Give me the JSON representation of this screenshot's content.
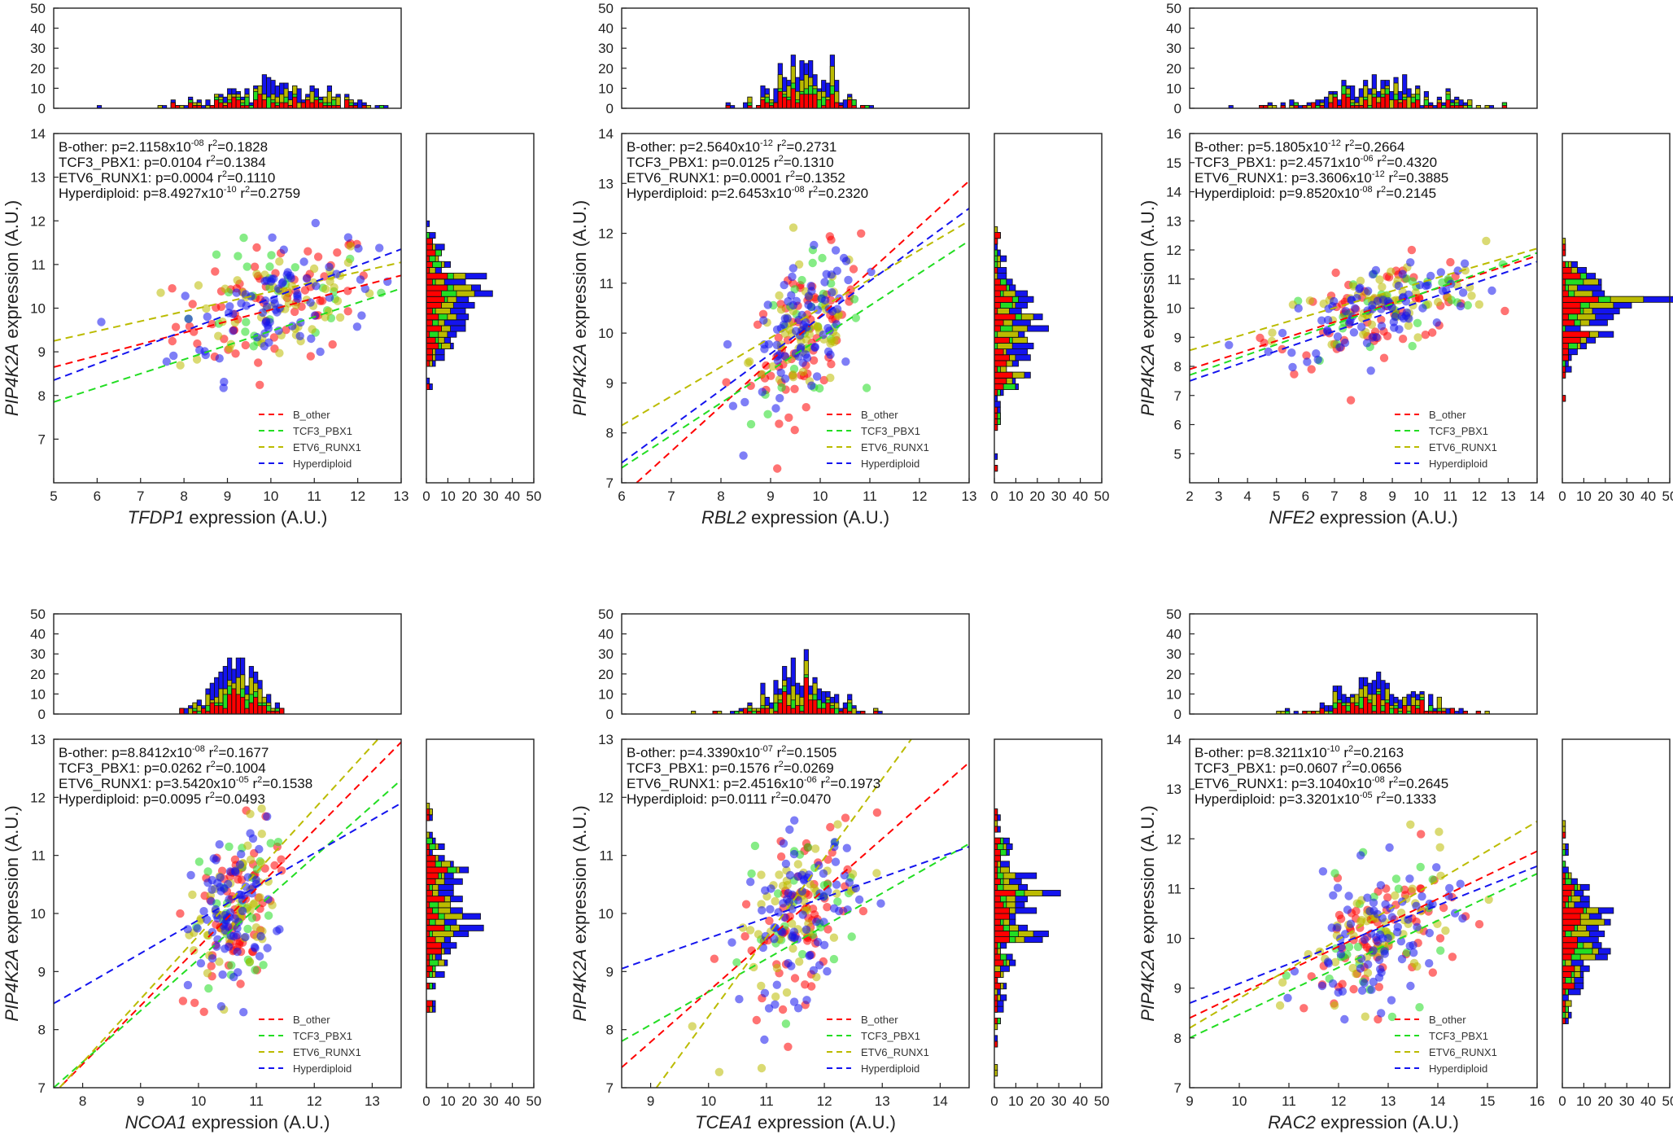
{
  "colors": {
    "B_other": "#ff0000",
    "TCF3_PBX1": "#22dd22",
    "ETV6_RUNX1": "#bbbb00",
    "Hyperdiploid": "#1414ee"
  },
  "legend": [
    "B_other",
    "TCF3_PBX1",
    "ETV6_RUNX1",
    "Hyperdiploid"
  ],
  "y_label_gene": "PIP4K2A",
  "axis_suffix": "expression (A.U.)",
  "hist_ticks": [
    0,
    10,
    20,
    30,
    40,
    50
  ],
  "chart_data": [
    {
      "type": "scatter",
      "x_gene": "TFDP1",
      "xlim": [
        5,
        13
      ],
      "ylim": [
        6,
        14
      ],
      "xticks": [
        5,
        6,
        7,
        8,
        9,
        10,
        11,
        12,
        13
      ],
      "yticks": [
        7,
        8,
        9,
        10,
        11,
        12,
        13,
        14
      ],
      "x_center": 10.1,
      "x_sd": 1.15,
      "y_center": 10.1,
      "y_sd": 0.85,
      "stats": [
        {
          "label": "B-other:",
          "p": "p=2.1158x10",
          "exp": "-08",
          "r2": "=0.1828"
        },
        {
          "label": "TCF3_PBX1:",
          "p": "p=0.0104",
          "exp": "",
          "r2": "=0.1384"
        },
        {
          "label": "ETV6_RUNX1:",
          "p": "p=0.0004",
          "exp": "",
          "r2": "=0.1110"
        },
        {
          "label": "Hyperdiploid:",
          "p": "p=8.4927x10",
          "exp": "-10",
          "r2": "=0.2759"
        }
      ],
      "fits": [
        {
          "group": "B_other",
          "x": [
            5,
            13
          ],
          "y": [
            8.65,
            10.75
          ]
        },
        {
          "group": "TCF3_PBX1",
          "x": [
            5,
            13
          ],
          "y": [
            7.85,
            10.45
          ]
        },
        {
          "group": "ETV6_RUNX1",
          "x": [
            5,
            13
          ],
          "y": [
            9.25,
            11.05
          ]
        },
        {
          "group": "Hyperdiploid",
          "x": [
            5,
            13
          ],
          "y": [
            8.35,
            11.35
          ]
        }
      ]
    },
    {
      "type": "scatter",
      "x_gene": "RBL2",
      "xlim": [
        6,
        13
      ],
      "ylim": [
        7,
        14
      ],
      "xticks": [
        6,
        7,
        8,
        9,
        10,
        11,
        12,
        13
      ],
      "yticks": [
        7,
        8,
        9,
        10,
        11,
        12,
        13,
        14
      ],
      "x_center": 9.7,
      "x_sd": 0.55,
      "y_center": 10.0,
      "y_sd": 0.85,
      "stats": [
        {
          "label": "B-other:",
          "p": "p=2.5640x10",
          "exp": "-12",
          "r2": "=0.2731"
        },
        {
          "label": "TCF3_PBX1:",
          "p": "p=0.0125",
          "exp": "",
          "r2": "=0.1310"
        },
        {
          "label": "ETV6_RUNX1:",
          "p": "p=0.0001",
          "exp": "",
          "r2": "=0.1352"
        },
        {
          "label": "Hyperdiploid:",
          "p": "p=2.6453x10",
          "exp": "-08",
          "r2": "=0.2320"
        }
      ],
      "fits": [
        {
          "group": "B_other",
          "x": [
            6.3,
            13
          ],
          "y": [
            7.0,
            13.05
          ]
        },
        {
          "group": "TCF3_PBX1",
          "x": [
            6,
            13
          ],
          "y": [
            7.3,
            11.85
          ]
        },
        {
          "group": "ETV6_RUNX1",
          "x": [
            6,
            13
          ],
          "y": [
            8.15,
            12.25
          ]
        },
        {
          "group": "Hyperdiploid",
          "x": [
            6,
            13
          ],
          "y": [
            7.4,
            12.5
          ]
        }
      ]
    },
    {
      "type": "scatter",
      "x_gene": "NFE2",
      "xlim": [
        2,
        14
      ],
      "ylim": [
        4,
        16
      ],
      "xticks": [
        2,
        3,
        4,
        5,
        6,
        7,
        8,
        9,
        10,
        11,
        12,
        13,
        14
      ],
      "yticks": [
        5,
        6,
        7,
        8,
        9,
        10,
        11,
        12,
        13,
        14,
        15,
        16
      ],
      "x_center": 8.6,
      "x_sd": 1.8,
      "y_center": 10.0,
      "y_sd": 0.9,
      "stats": [
        {
          "label": "B-other:",
          "p": "p=5.1805x10",
          "exp": "-12",
          "r2": "=0.2664"
        },
        {
          "label": "TCF3_PBX1:",
          "p": "p=2.4571x10",
          "exp": "-06",
          "r2": "=0.4320"
        },
        {
          "label": "ETV6_RUNX1:",
          "p": "p=3.3606x10",
          "exp": "-12",
          "r2": "=0.3885"
        },
        {
          "label": "Hyperdiploid:",
          "p": "p=9.8520x10",
          "exp": "-08",
          "r2": "=0.2145"
        }
      ],
      "fits": [
        {
          "group": "B_other",
          "x": [
            2,
            14
          ],
          "y": [
            7.9,
            11.8
          ]
        },
        {
          "group": "TCF3_PBX1",
          "x": [
            2,
            14
          ],
          "y": [
            7.7,
            11.9
          ]
        },
        {
          "group": "ETV6_RUNX1",
          "x": [
            2,
            14
          ],
          "y": [
            8.55,
            12.05
          ]
        },
        {
          "group": "Hyperdiploid",
          "x": [
            2,
            14
          ],
          "y": [
            7.5,
            11.6
          ]
        }
      ]
    },
    {
      "type": "scatter",
      "x_gene": "NCOA1",
      "xlim": [
        7.5,
        13.5
      ],
      "ylim": [
        7,
        13
      ],
      "xticks": [
        8,
        9,
        10,
        11,
        12,
        13
      ],
      "yticks": [
        7,
        8,
        9,
        10,
        11,
        12,
        13
      ],
      "x_center": 10.6,
      "x_sd": 0.35,
      "y_center": 10.0,
      "y_sd": 0.85,
      "stats": [
        {
          "label": "B-other:",
          "p": "p=8.8412x10",
          "exp": "-08",
          "r2": "=0.1677"
        },
        {
          "label": "TCF3_PBX1:",
          "p": "p=0.0262",
          "exp": "",
          "r2": "=0.1004"
        },
        {
          "label": "ETV6_RUNX1:",
          "p": "p=3.5420x10",
          "exp": "-05",
          "r2": "=0.1538"
        },
        {
          "label": "Hyperdiploid:",
          "p": "p=0.0095",
          "exp": "",
          "r2": "=0.0493"
        }
      ],
      "fits": [
        {
          "group": "B_other",
          "x": [
            7.5,
            13.5
          ],
          "y": [
            6.9,
            12.95
          ]
        },
        {
          "group": "TCF3_PBX1",
          "x": [
            7.5,
            13.5
          ],
          "y": [
            7.0,
            12.3
          ]
        },
        {
          "group": "ETV6_RUNX1",
          "x": [
            7.6,
            13.1
          ],
          "y": [
            7.0,
            13.0
          ]
        },
        {
          "group": "Hyperdiploid",
          "x": [
            7.5,
            13.5
          ],
          "y": [
            8.45,
            11.9
          ]
        }
      ]
    },
    {
      "type": "scatter",
      "x_gene": "TCEA1",
      "xlim": [
        8.5,
        14.5
      ],
      "ylim": [
        7,
        13
      ],
      "xticks": [
        9,
        10,
        11,
        12,
        13,
        14
      ],
      "yticks": [
        7,
        8,
        9,
        10,
        11,
        12,
        13
      ],
      "x_center": 11.6,
      "x_sd": 0.5,
      "y_center": 10.0,
      "y_sd": 0.85,
      "stats": [
        {
          "label": "B-other:",
          "p": "p=4.3390x10",
          "exp": "-07",
          "r2": "=0.1505"
        },
        {
          "label": "TCF3_PBX1:",
          "p": "p=0.1576",
          "exp": "",
          "r2": "=0.0269"
        },
        {
          "label": "ETV6_RUNX1:",
          "p": "p=2.4516x10",
          "exp": "-06",
          "r2": "=0.1973"
        },
        {
          "label": "Hyperdiploid:",
          "p": "p=0.0111",
          "exp": "",
          "r2": "=0.0470"
        }
      ],
      "fits": [
        {
          "group": "B_other",
          "x": [
            8.5,
            14.5
          ],
          "y": [
            7.35,
            12.6
          ]
        },
        {
          "group": "TCF3_PBX1",
          "x": [
            8.5,
            14.5
          ],
          "y": [
            7.8,
            11.2
          ]
        },
        {
          "group": "ETV6_RUNX1",
          "x": [
            9.1,
            13.5
          ],
          "y": [
            7.0,
            13.0
          ]
        },
        {
          "group": "Hyperdiploid",
          "x": [
            8.5,
            14.5
          ],
          "y": [
            9.05,
            11.15
          ]
        }
      ]
    },
    {
      "type": "scatter",
      "x_gene": "RAC2",
      "xlim": [
        9,
        16
      ],
      "ylim": [
        7,
        14
      ],
      "xticks": [
        9,
        10,
        11,
        12,
        13,
        14,
        15,
        16
      ],
      "yticks": [
        7,
        8,
        9,
        10,
        11,
        12,
        13,
        14
      ],
      "x_center": 12.8,
      "x_sd": 0.75,
      "y_center": 10.0,
      "y_sd": 0.85,
      "stats": [
        {
          "label": "B-other:",
          "p": "p=8.3211x10",
          "exp": "-10",
          "r2": "=0.2163"
        },
        {
          "label": "TCF3_PBX1:",
          "p": "p=0.0607",
          "exp": "",
          "r2": "=0.0656"
        },
        {
          "label": "ETV6_RUNX1:",
          "p": "p=3.1040x10",
          "exp": "-08",
          "r2": "=0.2645"
        },
        {
          "label": "Hyperdiploid:",
          "p": "p=3.3201x10",
          "exp": "-05",
          "r2": "=0.1333"
        }
      ],
      "fits": [
        {
          "group": "B_other",
          "x": [
            9,
            16
          ],
          "y": [
            8.4,
            11.75
          ]
        },
        {
          "group": "TCF3_PBX1",
          "x": [
            9,
            16
          ],
          "y": [
            8.0,
            11.3
          ]
        },
        {
          "group": "ETV6_RUNX1",
          "x": [
            9,
            16
          ],
          "y": [
            8.2,
            12.35
          ]
        },
        {
          "group": "Hyperdiploid",
          "x": [
            9,
            16
          ],
          "y": [
            8.7,
            11.45
          ]
        }
      ]
    }
  ]
}
